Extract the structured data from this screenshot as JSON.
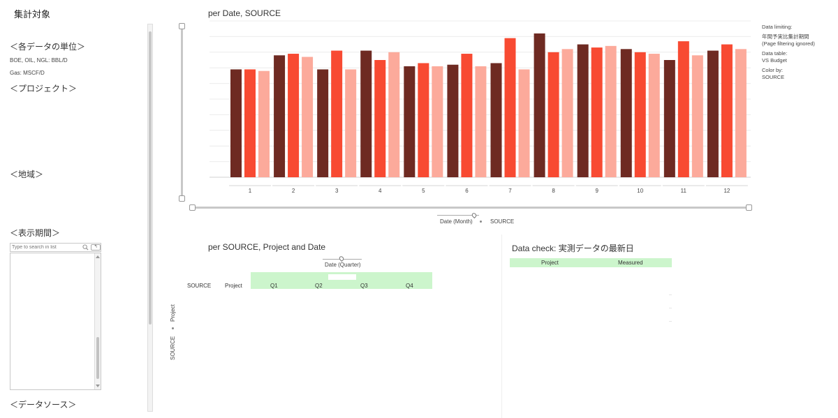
{
  "left_panel": {
    "title": "集計対象",
    "units_heading": "＜各データの単位＞",
    "units_line1": "BOE, OIL, NGL: BBL/D",
    "units_line2": "Gas: MSCF/D",
    "project_heading": "＜プロジェクト＞",
    "region_heading": "＜地域＞",
    "period_heading": "＜表示期間＞",
    "search_placeholder": "Type to search in list",
    "options_label": "↰",
    "datasource_heading": "＜データソース＞"
  },
  "main_chart": {
    "title": "per Date, SOURCE",
    "axis_caption_left": "Date (Month)",
    "axis_caption_right": "SOURCE",
    "legend": {
      "data_limiting_label": "Data limiting:",
      "data_limiting_value1": "年間予実比集計期間",
      "data_limiting_value2": "(Page filtering ignored)",
      "data_table_label": "Data table:",
      "data_table_value": "VS Budget",
      "color_by_label": "Color by:",
      "color_by_value": "SOURCE"
    }
  },
  "chart_data": {
    "type": "bar",
    "title": "per Date, SOURCE",
    "xlabel": "Date (Month)",
    "ylabel": "",
    "categories": [
      "1",
      "2",
      "3",
      "4",
      "5",
      "6",
      "7",
      "8",
      "9",
      "10",
      "11",
      "12"
    ],
    "ylim": [
      0,
      100
    ],
    "grid": true,
    "series": [
      {
        "values": [
          69,
          78,
          69,
          81,
          71,
          72,
          73,
          92,
          85,
          82,
          75,
          81
        ],
        "color": "#6e2a22"
      },
      {
        "values": [
          69,
          79,
          81,
          75,
          73,
          79,
          89,
          80,
          83,
          80,
          87,
          85
        ],
        "color": "#f84a32"
      },
      {
        "values": [
          68,
          77,
          69,
          80,
          71,
          71,
          69,
          82,
          84,
          79,
          78,
          82
        ],
        "color": "#fcaa9b"
      }
    ]
  },
  "table2": {
    "title": "per SOURCE, Project and Date",
    "quarter_caption": "Date (Quarter)",
    "row_headers": [
      "SOURCE",
      "Project"
    ],
    "quarters": [
      "Q1",
      "Q2",
      "Q3",
      "Q4"
    ],
    "vertical_label1": "Project",
    "vertical_label2": "SOURCE"
  },
  "table3": {
    "title": "Data check: 実測データの最新日",
    "columns": [
      "Project",
      "Measured"
    ]
  },
  "colors": {
    "series_dark": "#6e2a22",
    "series_mid": "#f84a32",
    "series_light": "#fcaa9b",
    "header_green": "#ccf5cc"
  }
}
